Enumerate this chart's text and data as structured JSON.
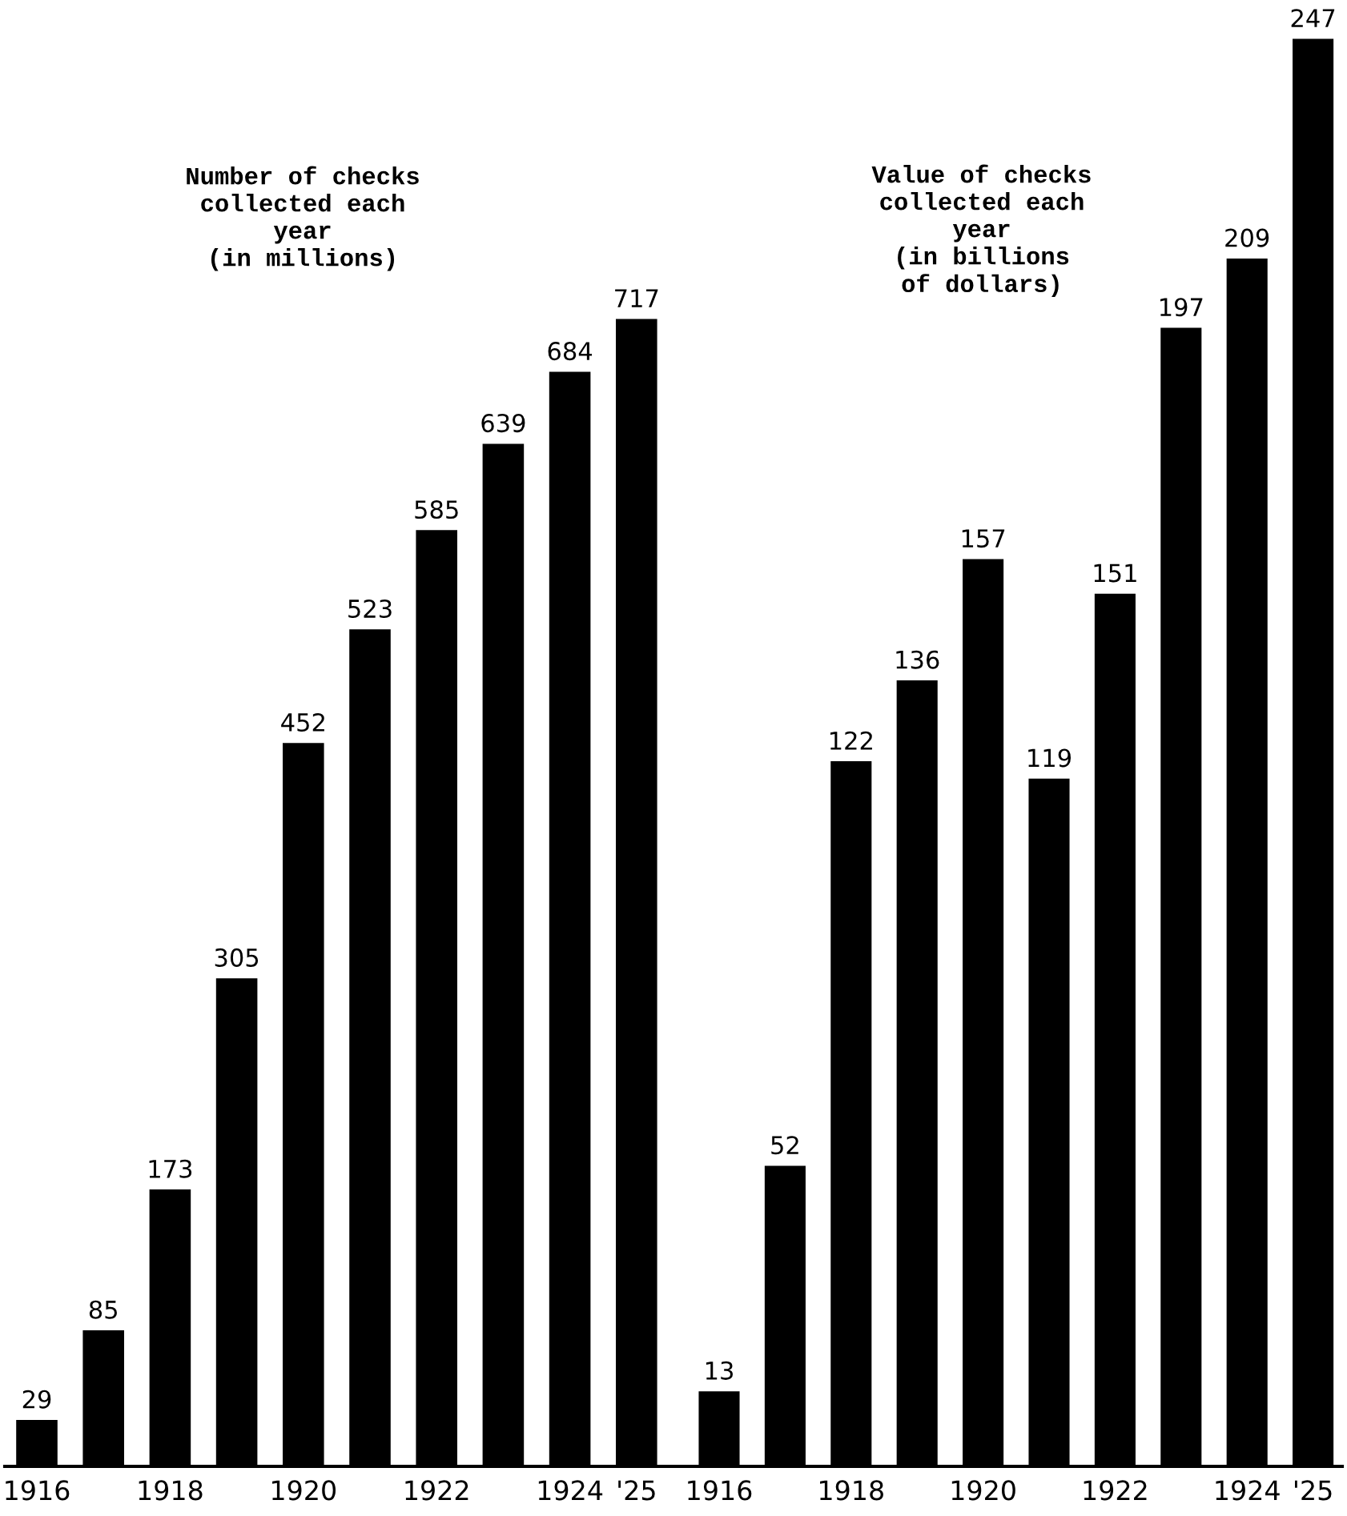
{
  "chart_data": [
    {
      "type": "bar",
      "title": "Number of checks\ncollected each\nyear\n(in millions)",
      "categories": [
        "1916",
        null,
        "1918",
        null,
        "1920",
        null,
        "1922",
        null,
        "1924",
        "'25"
      ],
      "values": [
        29,
        85,
        173,
        305,
        452,
        523,
        585,
        639,
        684,
        717
      ],
      "color": "#000000",
      "data_labels": true
    },
    {
      "type": "bar",
      "title": "Value of checks\ncollected each\nyear\n(in billions\nof dollars)",
      "categories": [
        "1916",
        null,
        "1918",
        null,
        "1920",
        null,
        "1922",
        null,
        "1924",
        "'25"
      ],
      "values": [
        13,
        52,
        122,
        136,
        157,
        119,
        151,
        197,
        209,
        247
      ],
      "color": "#000000",
      "data_labels": true
    }
  ]
}
